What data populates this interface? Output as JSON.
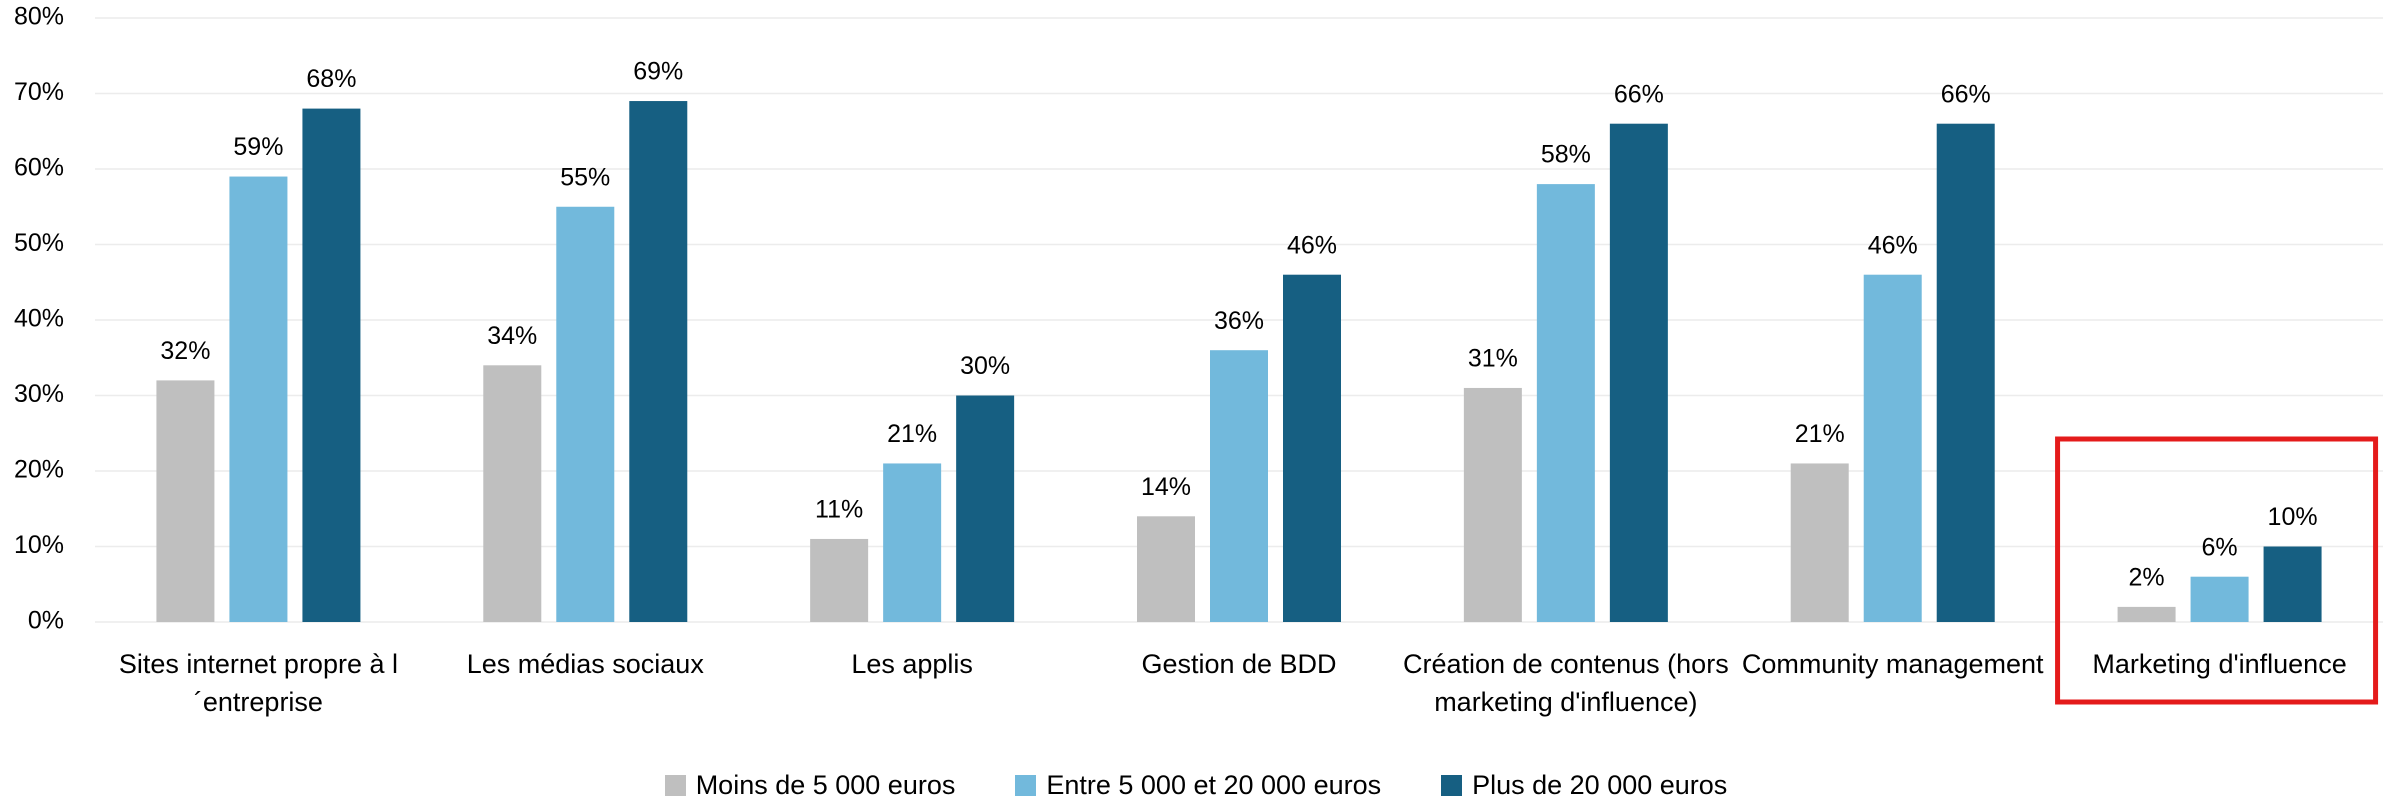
{
  "chart_data": {
    "type": "bar",
    "categories": [
      "Sites internet propre à l´entreprise",
      "Les médias sociaux",
      "Les applis",
      "Gestion de BDD",
      "Création de contenus (hors marketing d'influence)",
      "Community management",
      "Marketing d'influence"
    ],
    "series": [
      {
        "name": "Moins de 5 000 euros",
        "color": "#bfbfbf",
        "values": [
          32,
          34,
          11,
          14,
          31,
          21,
          2
        ],
        "value_labels": [
          "32%",
          "34%",
          "11%",
          "14%",
          "31%",
          "21%",
          "2%"
        ]
      },
      {
        "name": "Entre 5 000 et 20 000 euros",
        "color": "#72b9dc",
        "values": [
          59,
          55,
          21,
          36,
          58,
          46,
          6
        ],
        "value_labels": [
          "59%",
          "55%",
          "21%",
          "36%",
          "58%",
          "46%",
          "6%"
        ]
      },
      {
        "name": "Plus de 20 000 euros",
        "color": "#165f82",
        "values": [
          68,
          69,
          30,
          46,
          66,
          66,
          10
        ],
        "value_labels": [
          "68%",
          "69%",
          "30%",
          "46%",
          "66%",
          "66%",
          "10%"
        ]
      }
    ],
    "ylim": [
      0,
      80
    ],
    "yticks": [
      {
        "value": 0,
        "label": "0%"
      },
      {
        "value": 10,
        "label": "10%"
      },
      {
        "value": 20,
        "label": "20%"
      },
      {
        "value": 30,
        "label": "30%"
      },
      {
        "value": 40,
        "label": "40%"
      },
      {
        "value": 50,
        "label": "50%"
      },
      {
        "value": 60,
        "label": "60%"
      },
      {
        "value": 70,
        "label": "70%"
      },
      {
        "value": 80,
        "label": "80%"
      }
    ],
    "grid": true,
    "legend": "bottom"
  }
}
